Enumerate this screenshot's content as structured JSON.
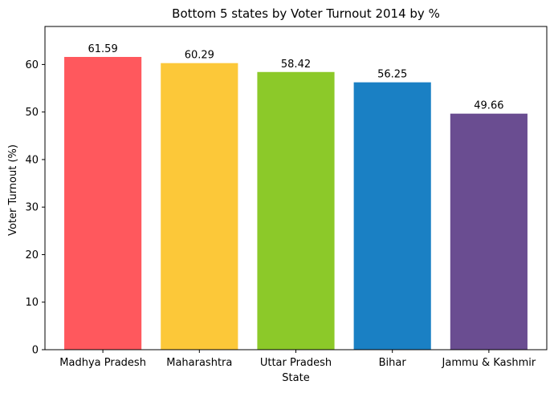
{
  "chart_data": {
    "type": "bar",
    "title": "Bottom 5 states by Voter Turnout 2014 by %",
    "xlabel": "State",
    "ylabel": "Voter Turnout (%)",
    "categories": [
      "Madhya Pradesh",
      "Maharashtra",
      "Uttar Pradesh",
      "Bihar",
      "Jammu & Kashmir"
    ],
    "values": [
      61.59,
      60.29,
      58.42,
      56.25,
      49.66
    ],
    "data_labels": [
      "61.59",
      "60.29",
      "58.42",
      "56.25",
      "49.66"
    ],
    "colors": [
      "#ff585d",
      "#fcc839",
      "#8cc929",
      "#1a80c4",
      "#6a4d91"
    ],
    "ylim": [
      0,
      68
    ],
    "yticks": [
      0,
      10,
      20,
      30,
      40,
      50,
      60
    ],
    "grid": false,
    "legend": "none"
  }
}
